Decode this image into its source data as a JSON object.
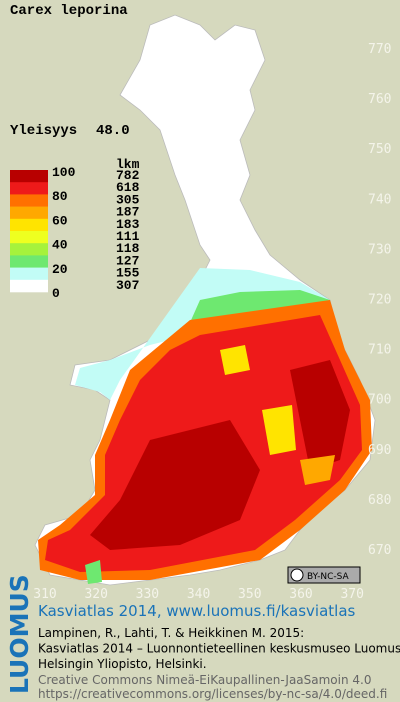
{
  "title": "Carex leporina",
  "frequency": {
    "label": "Yleisyys",
    "value": "48.0"
  },
  "legend": {
    "scale": [
      100,
      80,
      60,
      40,
      20,
      0
    ],
    "count_header": "lkm",
    "classes": [
      {
        "color": "#b80000",
        "count": 782
      },
      {
        "color": "#ee1a1a",
        "count": 618
      },
      {
        "color": "#ff7000",
        "count": 305
      },
      {
        "color": "#ffa800",
        "count": 187
      },
      {
        "color": "#ffe400",
        "count": 183
      },
      {
        "color": "#eeff20",
        "count": 111
      },
      {
        "color": "#a6f23c",
        "count": 118
      },
      {
        "color": "#6ee870",
        "count": 127
      },
      {
        "color": "#c2fcf6",
        "count": 155
      },
      {
        "color": "#ffffff",
        "count": 307
      }
    ]
  },
  "map": {
    "xticks": [
      310,
      320,
      330,
      340,
      350,
      360,
      370
    ],
    "yticks": [
      770,
      760,
      750,
      740,
      730,
      720,
      710,
      700,
      690,
      680,
      670
    ]
  },
  "license_badge": "BY-NC-SA",
  "footer": {
    "logo": "LUOMUS",
    "source": "Kasviatlas 2014, www.luomus.fi/kasviatlas",
    "citation": [
      "Lampinen, R., Lahti, T. & Heikkinen M. 2015:",
      "Kasviatlas 2014 – Luonnontieteellinen keskusmuseo Luomus,",
      "Helsingin Yliopisto, Helsinki."
    ],
    "license": [
      "Creative Commons Nimeä-EiKaupallinen-JaaSamoin 4.0",
      "https://creativecommons.org/licenses/by-nc-sa/4.0/deed.fi"
    ]
  }
}
